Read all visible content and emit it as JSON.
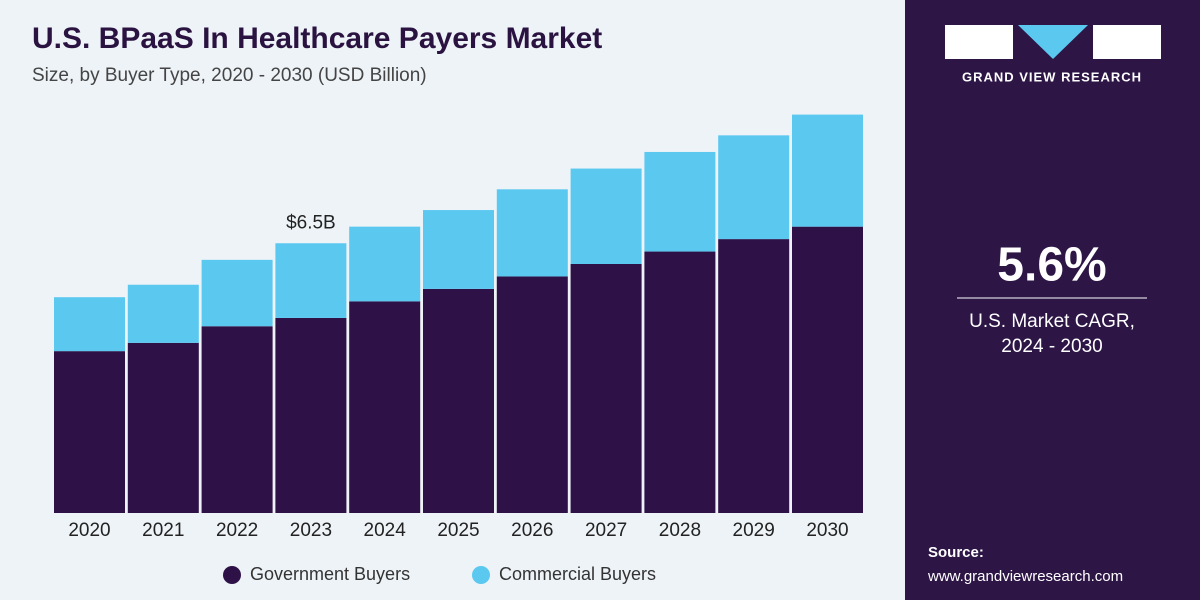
{
  "chart_data": {
    "type": "stacked_bar",
    "title": "U.S. BPaaS In Healthcare Payers Market",
    "subtitle": "Size, by Buyer Type, 2020 - 2030 (USD Billion)",
    "categories": [
      "2020",
      "2021",
      "2022",
      "2023",
      "2024",
      "2025",
      "2026",
      "2027",
      "2028",
      "2029",
      "2030"
    ],
    "series": [
      {
        "name": "Government Buyers",
        "color": "#2e1146",
        "values": [
          3.9,
          4.1,
          4.5,
          4.7,
          5.1,
          5.4,
          5.7,
          6.0,
          6.3,
          6.6,
          6.9
        ]
      },
      {
        "name": "Commercial Buyers",
        "color": "#5bc8f0",
        "values": [
          1.3,
          1.4,
          1.6,
          1.8,
          1.8,
          1.9,
          2.1,
          2.3,
          2.4,
          2.5,
          2.7
        ]
      }
    ],
    "total_label": {
      "category": "2023",
      "value": 6.5,
      "label": "$6.5B"
    }
  },
  "sidebar": {
    "brand": "GRAND VIEW RESEARCH",
    "cagr": "5.6%",
    "cagr_caption_1": "U.S. Market CAGR,",
    "cagr_caption_2": "2024 - 2030",
    "source_title": "Source:",
    "source_url": "www.grandviewresearch.com"
  }
}
